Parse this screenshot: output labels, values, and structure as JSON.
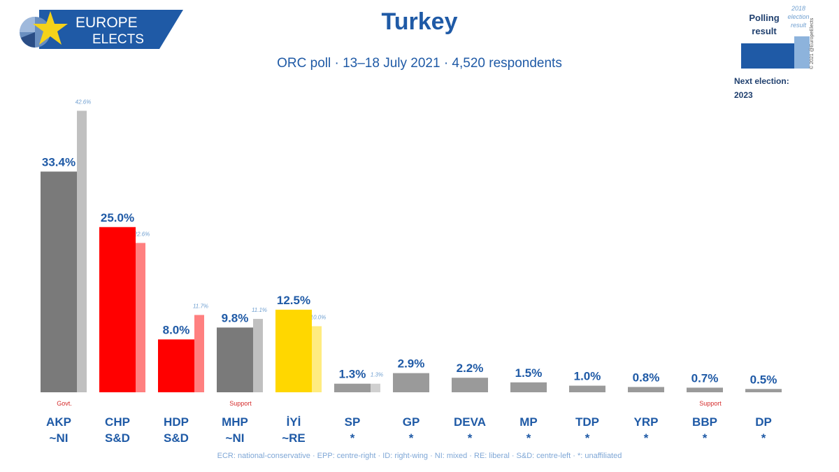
{
  "brand": {
    "line1": "EUROPE",
    "line2": "ELECTS",
    "colors": {
      "banner": "#1f5aa6",
      "star": "#f5d21a"
    }
  },
  "header": {
    "title": "Turkey",
    "subtitle": "ORC poll · 13–18 July 2021 · 4,520 respondents"
  },
  "legend": {
    "polling_label": "Polling result",
    "election_label": "2018 election result",
    "copyright": "© 2021 @EuropeElects",
    "next_election_label": "Next election:",
    "next_election_year": "2023"
  },
  "footer": {
    "note": "ECR: national-conservative · EPP: centre-right · ID: right-wing · NI: mixed · RE: liberal · S&D: centre-left · *: unaffiliated"
  },
  "chart_data": {
    "type": "bar",
    "title": "Turkey",
    "subtitle": "ORC poll · 13–18 July 2021 · 4,520 respondents",
    "ylim": [
      0,
      45
    ],
    "grid": false,
    "legend_position": "top-right",
    "categories": [
      "AKP",
      "CHP",
      "HDP",
      "MHP",
      "İYİ",
      "SP",
      "GP",
      "DEVA",
      "MP",
      "TDP",
      "YRP",
      "BBP",
      "DP"
    ],
    "groups": [
      "~NI",
      "S&D",
      "S&D",
      "~NI",
      "~RE",
      "*",
      "*",
      "*",
      "*",
      "*",
      "*",
      "*",
      "*"
    ],
    "notes": [
      "Govt.",
      "",
      "",
      "Support",
      "",
      "",
      "",
      "",
      "",
      "",
      "",
      "Support",
      ""
    ],
    "series": [
      {
        "name": "Polling result",
        "values": [
          33.4,
          25.0,
          8.0,
          9.8,
          12.5,
          1.3,
          2.9,
          2.2,
          1.5,
          1.0,
          0.8,
          0.7,
          0.5
        ],
        "labels": [
          "33.4%",
          "25.0%",
          "8.0%",
          "9.8%",
          "12.5%",
          "1.3%",
          "2.9%",
          "2.2%",
          "1.5%",
          "1.0%",
          "0.8%",
          "0.7%",
          "0.5%"
        ]
      },
      {
        "name": "2018 election result",
        "values": [
          42.6,
          22.6,
          11.7,
          11.1,
          10.0,
          1.3,
          null,
          null,
          null,
          null,
          null,
          null,
          null
        ],
        "labels": [
          "42.6%",
          "22.6%",
          "11.7%",
          "11.1%",
          "10.0%",
          "1.3%",
          "",
          "",
          "",
          "",
          "",
          "",
          ""
        ]
      }
    ],
    "colors": {
      "poll": [
        "#7a7a7a",
        "#ff0000",
        "#ff0000",
        "#7a7a7a",
        "#ffd700",
        "#9a9a9a",
        "#9a9a9a",
        "#9a9a9a",
        "#9a9a9a",
        "#9a9a9a",
        "#9a9a9a",
        "#9a9a9a",
        "#9a9a9a"
      ],
      "election": [
        "#c0c0c0",
        "#ff8080",
        "#ff8080",
        "#c0c0c0",
        "#ffec80",
        "#d0d0d0",
        "#d0d0d0",
        "#d0d0d0",
        "#d0d0d0",
        "#d0d0d0",
        "#d0d0d0",
        "#d0d0d0",
        "#d0d0d0"
      ],
      "label": "#1f5aa6",
      "election_label": "#6f9fd0",
      "note": "#d42a2a"
    }
  }
}
